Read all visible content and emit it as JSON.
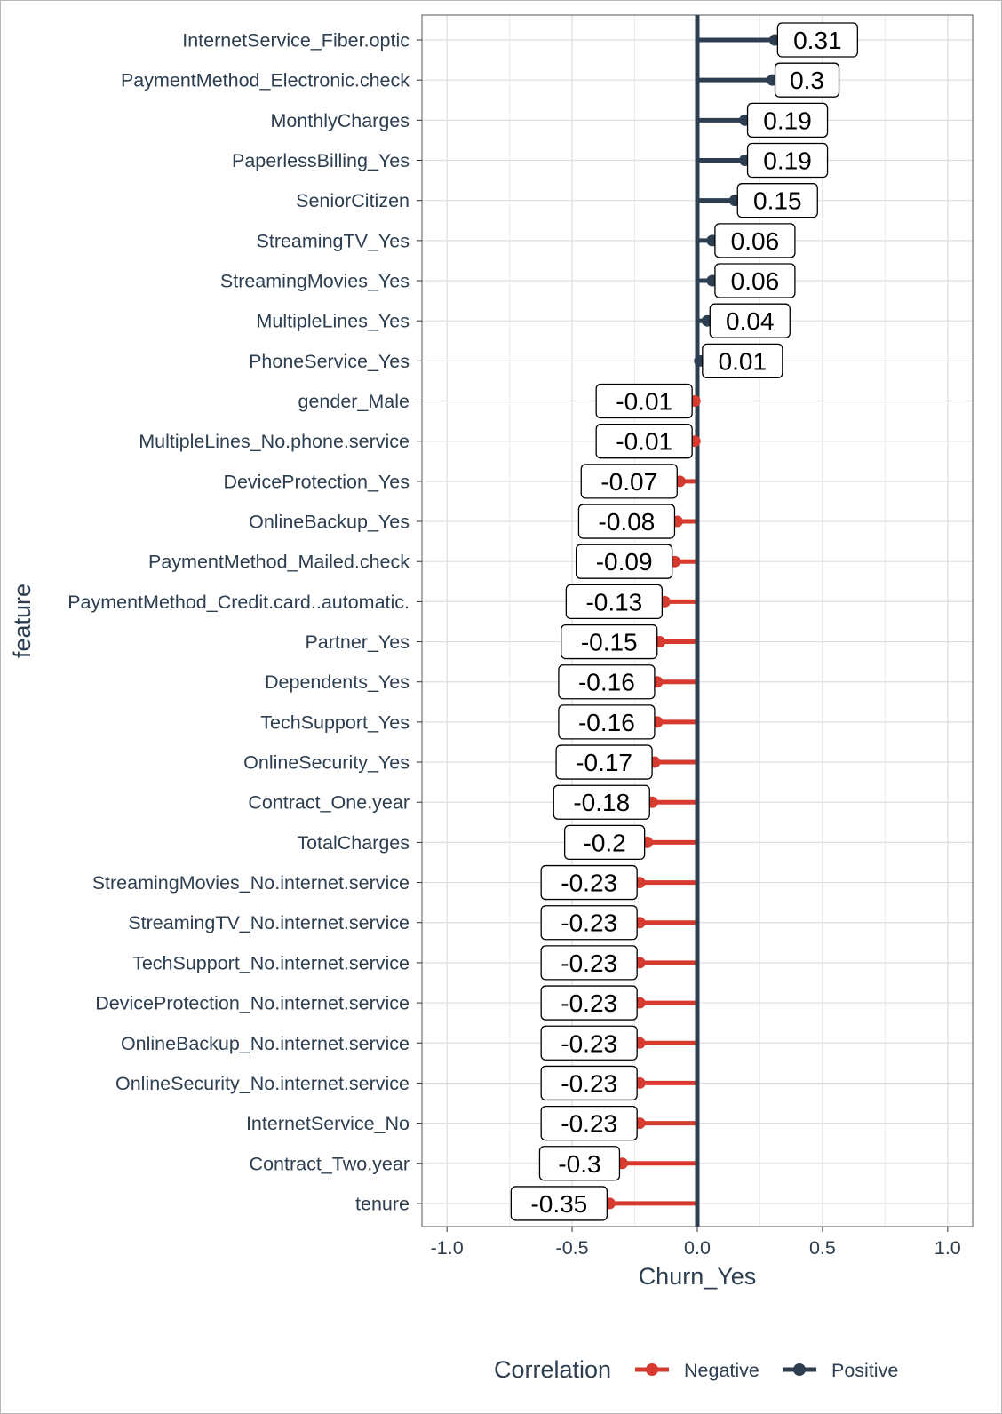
{
  "chart_data": {
    "type": "lollipop",
    "xlabel": "Churn_Yes",
    "ylabel": "feature",
    "xlim": [
      -1.1,
      1.1
    ],
    "xticks": [
      -1.0,
      -0.5,
      0.0,
      0.5,
      1.0
    ],
    "xtick_labels": [
      "-1.0",
      "-0.5",
      "0.0",
      "0.5",
      "1.0"
    ],
    "grid": true,
    "zero_line": true,
    "legend": {
      "title": "Correlation",
      "position": "bottom",
      "entries": [
        {
          "label": "Negative",
          "color": "#d73a2f"
        },
        {
          "label": "Positive",
          "color": "#2c3e50"
        }
      ]
    },
    "colors": {
      "positive": "#2c3e50",
      "negative": "#d73a2f",
      "axis_text": "#2c3e50"
    },
    "categories": [
      "InternetService_Fiber.optic",
      "PaymentMethod_Electronic.check",
      "MonthlyCharges",
      "PaperlessBilling_Yes",
      "SeniorCitizen",
      "StreamingTV_Yes",
      "StreamingMovies_Yes",
      "MultipleLines_Yes",
      "PhoneService_Yes",
      "gender_Male",
      "MultipleLines_No.phone.service",
      "DeviceProtection_Yes",
      "OnlineBackup_Yes",
      "PaymentMethod_Mailed.check",
      "PaymentMethod_Credit.card..automatic.",
      "Partner_Yes",
      "Dependents_Yes",
      "TechSupport_Yes",
      "OnlineSecurity_Yes",
      "Contract_One.year",
      "TotalCharges",
      "StreamingMovies_No.internet.service",
      "StreamingTV_No.internet.service",
      "TechSupport_No.internet.service",
      "DeviceProtection_No.internet.service",
      "OnlineBackup_No.internet.service",
      "OnlineSecurity_No.internet.service",
      "InternetService_No",
      "Contract_Two.year",
      "tenure"
    ],
    "values": [
      0.31,
      0.3,
      0.19,
      0.19,
      0.15,
      0.06,
      0.06,
      0.04,
      0.01,
      -0.01,
      -0.01,
      -0.07,
      -0.08,
      -0.09,
      -0.13,
      -0.15,
      -0.16,
      -0.16,
      -0.17,
      -0.18,
      -0.2,
      -0.23,
      -0.23,
      -0.23,
      -0.23,
      -0.23,
      -0.23,
      -0.23,
      -0.3,
      -0.35
    ],
    "value_labels": [
      "0.31",
      "0.3",
      "0.19",
      "0.19",
      "0.15",
      "0.06",
      "0.06",
      "0.04",
      "0.01",
      "-0.01",
      "-0.01",
      "-0.07",
      "-0.08",
      "-0.09",
      "-0.13",
      "-0.15",
      "-0.16",
      "-0.16",
      "-0.17",
      "-0.18",
      "-0.2",
      "-0.23",
      "-0.23",
      "-0.23",
      "-0.23",
      "-0.23",
      "-0.23",
      "-0.23",
      "-0.3",
      "-0.35"
    ]
  }
}
